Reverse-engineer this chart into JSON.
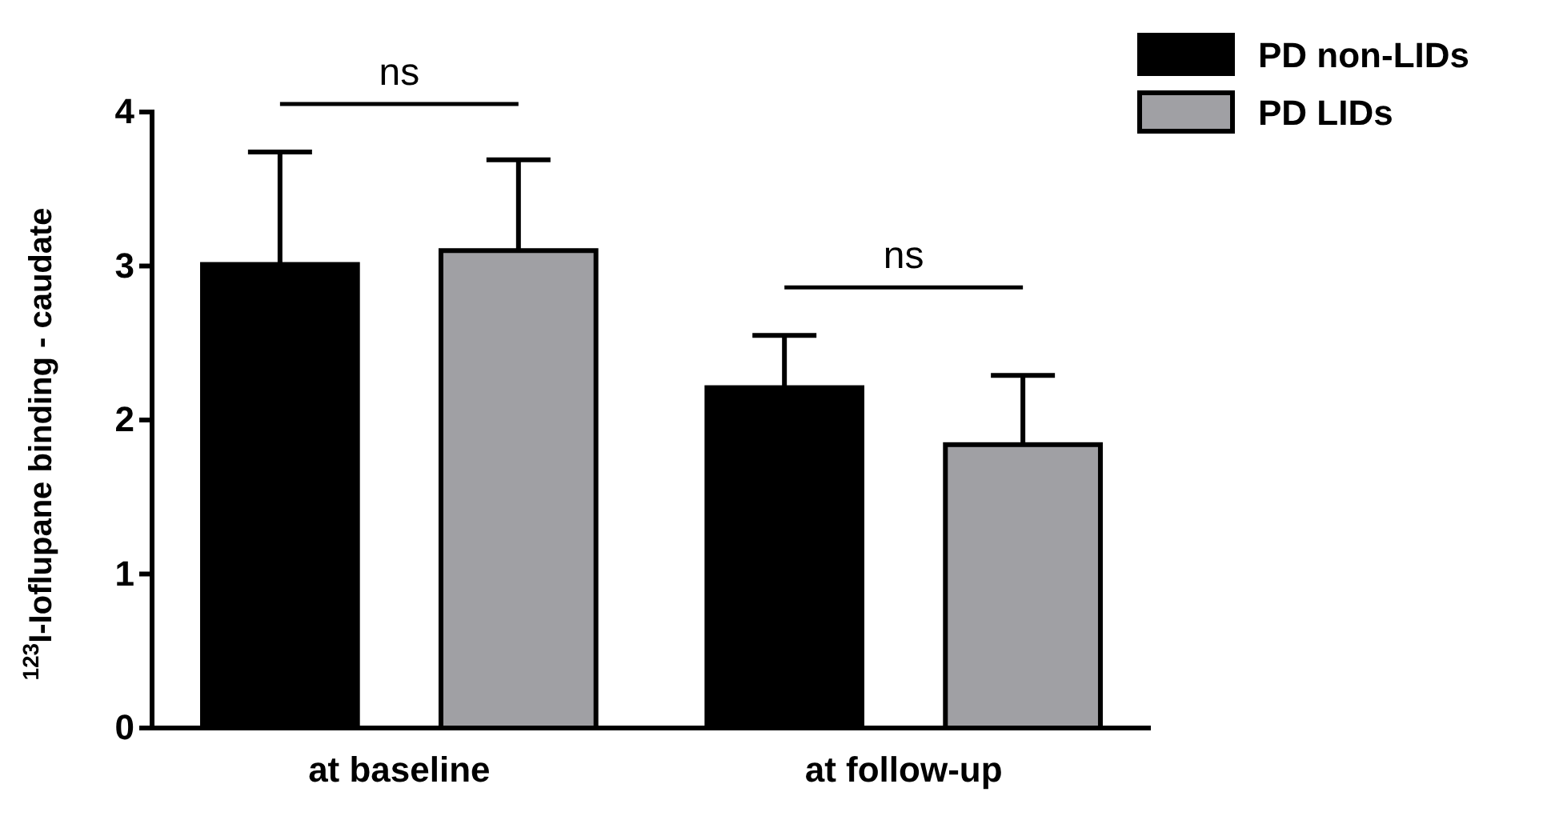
{
  "chart_data": {
    "type": "bar",
    "ylabel": "$^{123}$I-Ioflupane binding - caudate",
    "categories": [
      "at baseline",
      "at follow-up"
    ],
    "series": [
      {
        "name": "PD non-LIDs",
        "color": "#000000",
        "values": [
          3.01,
          2.21
        ],
        "errors": [
          [
            3.01,
            3.74
          ],
          [
            2.21,
            2.55
          ]
        ]
      },
      {
        "name": "PD LIDs",
        "color": "#a0a0a4",
        "values": [
          3.1,
          1.84
        ],
        "errors": [
          [
            3.1,
            3.69
          ],
          [
            1.84,
            2.29
          ]
        ]
      }
    ],
    "ylim": [
      0,
      4
    ],
    "yticks": [
      0,
      1,
      2,
      3,
      4
    ],
    "legend": "top right",
    "annotations": [
      "ns",
      "ns"
    ]
  }
}
